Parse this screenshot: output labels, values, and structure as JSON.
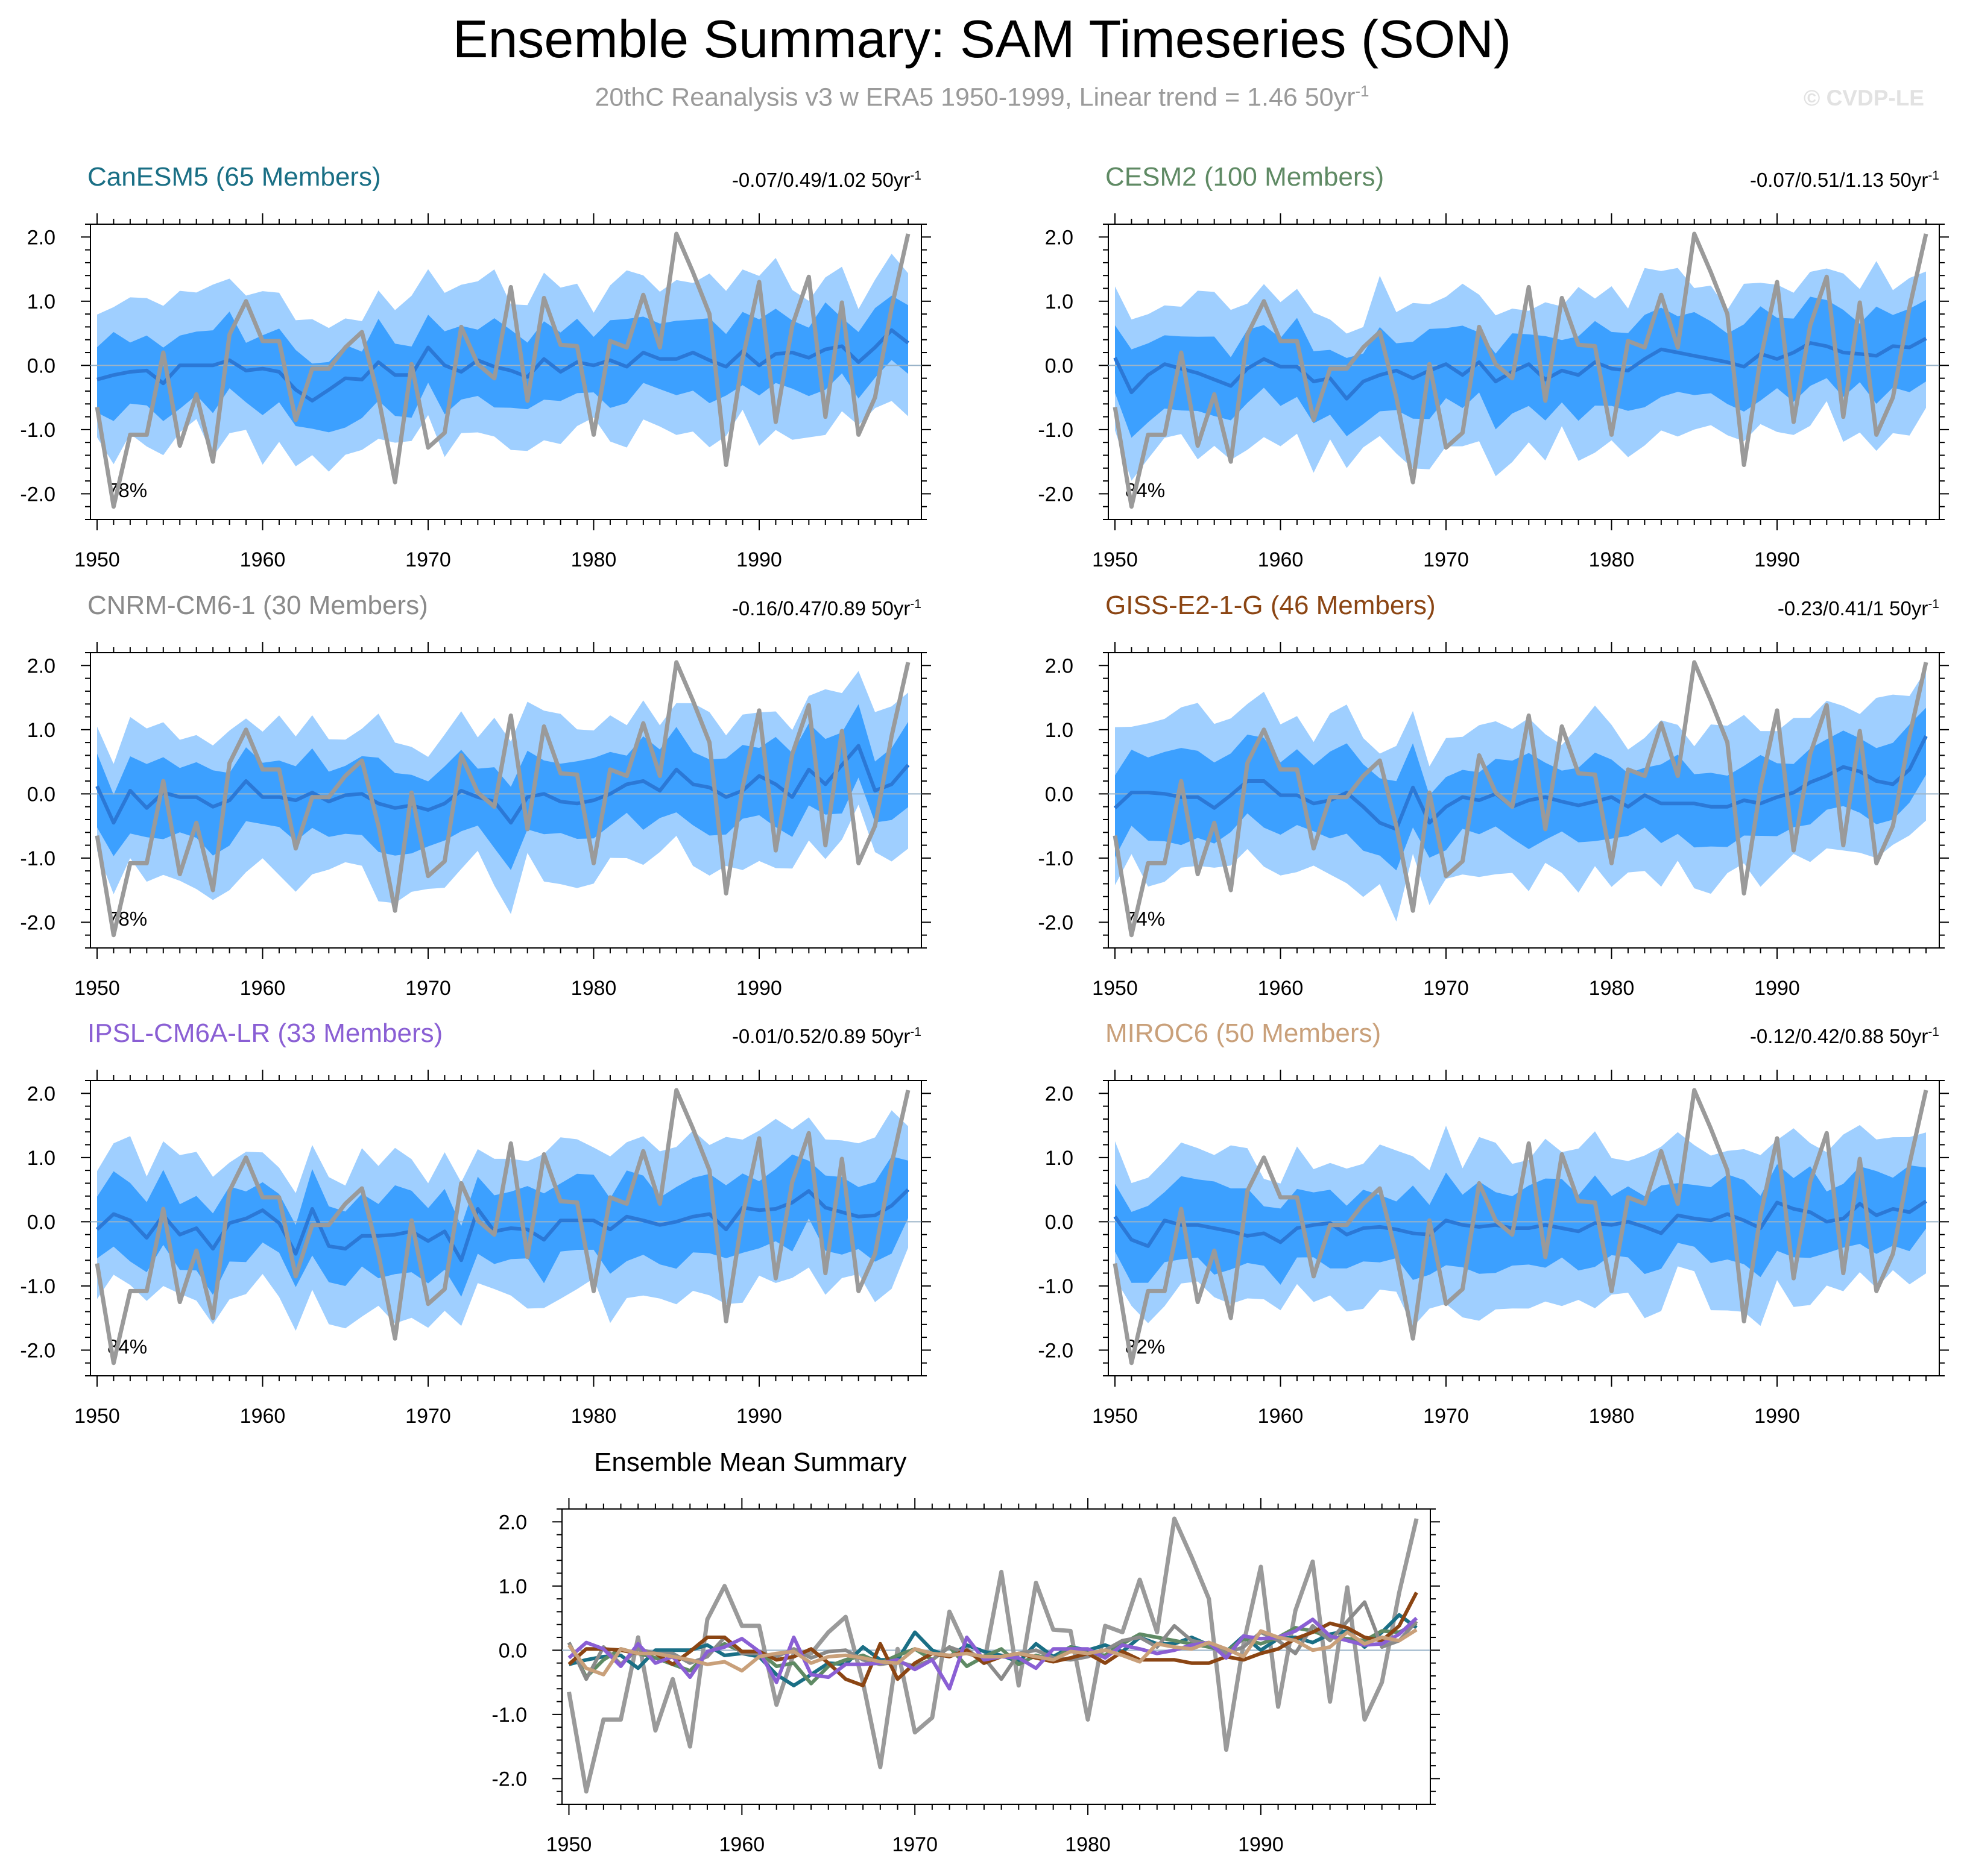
{
  "title": "Ensemble Summary: SAM Timeseries (SON)",
  "subtitle": {
    "text": "20thC Reanalysis v3 w ERA5 1950-1999, Linear trend = 1.46 50yr",
    "exponent": "-1"
  },
  "watermark": "© CVDP-LE",
  "colors": {
    "band_outer": "#9fcfff",
    "band_inner": "#3ca0ff",
    "mean_line": "#2b78d6",
    "obs_line": "#9a9a9a",
    "zero_line": "#9ab3c8"
  },
  "chart_data": {
    "type": "line",
    "x_start": 1950,
    "x_end": 1999,
    "xticks": [
      1950,
      1960,
      1970,
      1980,
      1990
    ],
    "xlim": [
      1949.6,
      1999.8
    ],
    "yticks": [
      2.0,
      1.0,
      0.0,
      -1.0,
      -2.0
    ],
    "ytick_labels": [
      "2.0",
      "1.0",
      "0.0",
      "-1.0",
      "-2.0"
    ],
    "ylim": [
      -2.4,
      2.2
    ],
    "observations": {
      "name": "20thC Reanalysis v3 w ERA5",
      "values": [
        -0.65,
        -2.2,
        -1.08,
        -1.08,
        0.2,
        -1.25,
        -0.45,
        -1.5,
        0.48,
        1.0,
        0.38,
        0.38,
        -0.85,
        -0.05,
        -0.05,
        0.28,
        0.52,
        -0.5,
        -1.82,
        0.02,
        -1.28,
        -1.05,
        0.6,
        0.02,
        -0.2,
        1.22,
        -0.55,
        1.05,
        0.32,
        0.3,
        -1.08,
        0.38,
        0.28,
        1.1,
        0.28,
        2.05,
        1.45,
        0.8,
        -1.55,
        0.1,
        1.3,
        -0.88,
        0.62,
        1.38,
        -0.8,
        0.98,
        -1.08,
        -0.5,
        0.9,
        2.05
      ]
    },
    "panels": [
      {
        "model": "CanESM5",
        "members": 65,
        "label": "CanESM5 (65 Members)",
        "color": "#1a6f85",
        "trend": "-0.07/0.49/1.02 50yr",
        "trend_exp": "-1",
        "percent": "78%",
        "mean": [
          -0.22,
          -0.15,
          -0.1,
          -0.08,
          -0.28,
          0.0,
          0.0,
          0.0,
          0.08,
          -0.08,
          -0.05,
          -0.1,
          -0.38,
          -0.55,
          -0.38,
          -0.2,
          -0.22,
          0.05,
          -0.15,
          -0.15,
          0.28,
          0.0,
          -0.1,
          0.08,
          -0.02,
          -0.08,
          -0.18,
          0.1,
          -0.1,
          0.05,
          0.0,
          0.08,
          -0.02,
          0.2,
          0.1,
          0.1,
          0.2,
          0.08,
          -0.02,
          0.22,
          0.0,
          0.18,
          0.2,
          0.12,
          0.25,
          0.3,
          0.05,
          0.28,
          0.55,
          0.35
        ],
        "seed": 11
      },
      {
        "model": "CESM2",
        "members": 100,
        "label": "CESM2 (100 Members)",
        "color": "#5f8a64",
        "trend": "-0.07/0.51/1.13 50yr",
        "trend_exp": "-1",
        "percent": "84%",
        "mean": [
          0.12,
          -0.42,
          -0.15,
          0.02,
          -0.05,
          -0.12,
          -0.22,
          -0.32,
          -0.05,
          0.1,
          -0.02,
          -0.02,
          -0.25,
          -0.2,
          -0.52,
          -0.25,
          -0.15,
          -0.08,
          -0.2,
          -0.08,
          0.02,
          -0.15,
          0.05,
          -0.25,
          -0.1,
          0.02,
          -0.22,
          -0.08,
          -0.15,
          0.05,
          -0.05,
          -0.08,
          0.1,
          0.25,
          0.2,
          0.15,
          0.1,
          0.05,
          -0.02,
          0.18,
          0.1,
          0.2,
          0.35,
          0.3,
          0.2,
          0.18,
          0.15,
          0.3,
          0.28,
          0.42
        ],
        "seed": 23
      },
      {
        "model": "CNRM-CM6-1",
        "members": 30,
        "label": "CNRM-CM6-1 (30 Members)",
        "color": "#8a8a8a",
        "trend": "-0.16/0.47/0.89 50yr",
        "trend_exp": "-1",
        "percent": "78%",
        "mean": [
          0.12,
          -0.45,
          0.05,
          -0.22,
          0.02,
          -0.05,
          -0.05,
          -0.2,
          -0.1,
          0.2,
          -0.05,
          -0.05,
          -0.1,
          0.02,
          -0.12,
          -0.02,
          0.0,
          -0.15,
          -0.22,
          -0.18,
          -0.25,
          -0.15,
          0.05,
          -0.05,
          -0.12,
          -0.45,
          -0.05,
          0.0,
          -0.12,
          -0.15,
          -0.1,
          0.0,
          0.15,
          0.2,
          0.05,
          0.38,
          0.15,
          0.1,
          -0.05,
          0.05,
          0.28,
          0.15,
          -0.05,
          0.38,
          0.15,
          0.45,
          0.75,
          0.05,
          0.15,
          0.45
        ],
        "seed": 37
      },
      {
        "model": "GISS-E2-1-G",
        "members": 46,
        "label": "GISS-E2-1-G (46 Members)",
        "color": "#8b4513",
        "trend": "-0.23/0.41/1 50yr",
        "trend_exp": "-1",
        "percent": "74%",
        "mean": [
          -0.22,
          0.02,
          0.02,
          0.0,
          -0.05,
          -0.05,
          -0.22,
          -0.02,
          0.2,
          0.2,
          -0.02,
          -0.02,
          -0.15,
          -0.1,
          0.02,
          -0.2,
          -0.45,
          -0.55,
          0.1,
          -0.45,
          -0.2,
          -0.05,
          -0.1,
          0.0,
          -0.2,
          -0.1,
          -0.05,
          -0.12,
          -0.18,
          -0.12,
          -0.05,
          -0.2,
          -0.02,
          -0.15,
          -0.15,
          -0.15,
          -0.2,
          -0.2,
          -0.1,
          -0.15,
          -0.05,
          0.02,
          0.18,
          0.28,
          0.42,
          0.35,
          0.2,
          0.15,
          0.38,
          0.9
        ],
        "seed": 41
      },
      {
        "model": "IPSL-CM6A-LR",
        "members": 33,
        "label": "IPSL-CM6A-LR (33 Members)",
        "color": "#8a5fd4",
        "trend": "-0.01/0.52/0.89 50yr",
        "trend_exp": "-1",
        "percent": "84%",
        "mean": [
          -0.12,
          0.12,
          0.02,
          -0.25,
          0.1,
          -0.2,
          -0.1,
          -0.42,
          -0.02,
          0.05,
          0.18,
          -0.02,
          -0.5,
          0.2,
          -0.38,
          -0.42,
          -0.22,
          -0.22,
          -0.2,
          -0.15,
          -0.3,
          -0.15,
          -0.6,
          0.2,
          -0.15,
          -0.1,
          -0.12,
          -0.28,
          0.02,
          0.02,
          0.02,
          -0.12,
          0.08,
          0.02,
          -0.05,
          0.0,
          0.08,
          0.12,
          -0.12,
          0.22,
          0.18,
          0.2,
          0.3,
          0.48,
          0.22,
          0.15,
          0.08,
          0.1,
          0.25,
          0.5
        ],
        "seed": 53
      },
      {
        "model": "MIROC6",
        "members": 50,
        "label": "MIROC6 (50 Members)",
        "color": "#c9a07a",
        "trend": "-0.12/0.42/0.88 50yr",
        "trend_exp": "-1",
        "percent": "82%",
        "mean": [
          0.08,
          -0.28,
          -0.38,
          0.02,
          -0.05,
          -0.05,
          -0.1,
          -0.15,
          -0.22,
          -0.18,
          -0.32,
          -0.1,
          -0.05,
          -0.02,
          -0.2,
          -0.1,
          -0.08,
          -0.12,
          -0.18,
          -0.2,
          0.02,
          -0.05,
          -0.08,
          -0.05,
          -0.1,
          -0.1,
          -0.05,
          -0.1,
          -0.15,
          -0.02,
          -0.05,
          0.0,
          -0.08,
          -0.18,
          0.1,
          0.05,
          0.02,
          0.12,
          0.02,
          -0.1,
          0.3,
          0.2,
          0.15,
          0.0,
          0.05,
          0.28,
          0.1,
          0.2,
          0.15,
          0.32
        ],
        "seed": 67
      }
    ],
    "summary": {
      "title": "Ensemble Mean Summary"
    }
  }
}
